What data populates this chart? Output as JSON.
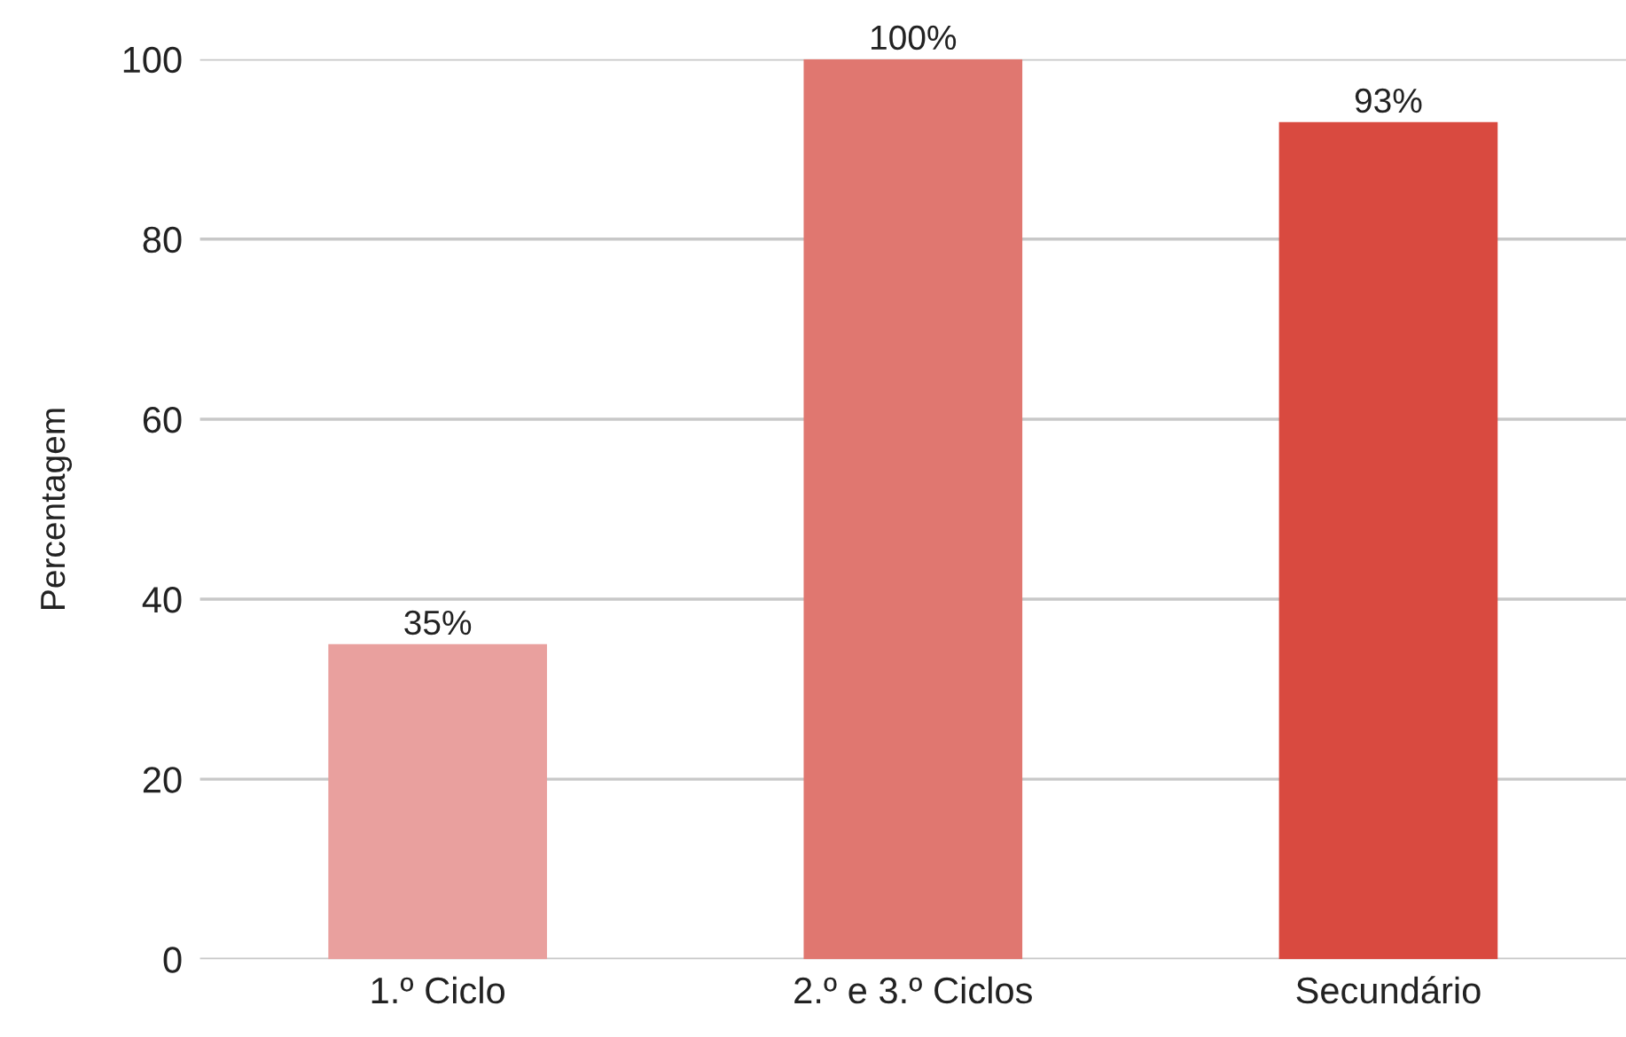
{
  "chart_data": {
    "type": "bar",
    "ylabel": "Percentagem",
    "categories": [
      "1.º Ciclo",
      "2.º e 3.º Ciclos",
      "Secundário"
    ],
    "values": [
      35,
      100,
      93
    ],
    "value_labels": [
      "35%",
      "100%",
      "93%"
    ],
    "colors": [
      "#e9a09e",
      "#e07770",
      "#d94a40"
    ],
    "ylim": [
      0,
      100
    ],
    "yticks": [
      0,
      20,
      40,
      60,
      80,
      100
    ],
    "grid": "y"
  }
}
